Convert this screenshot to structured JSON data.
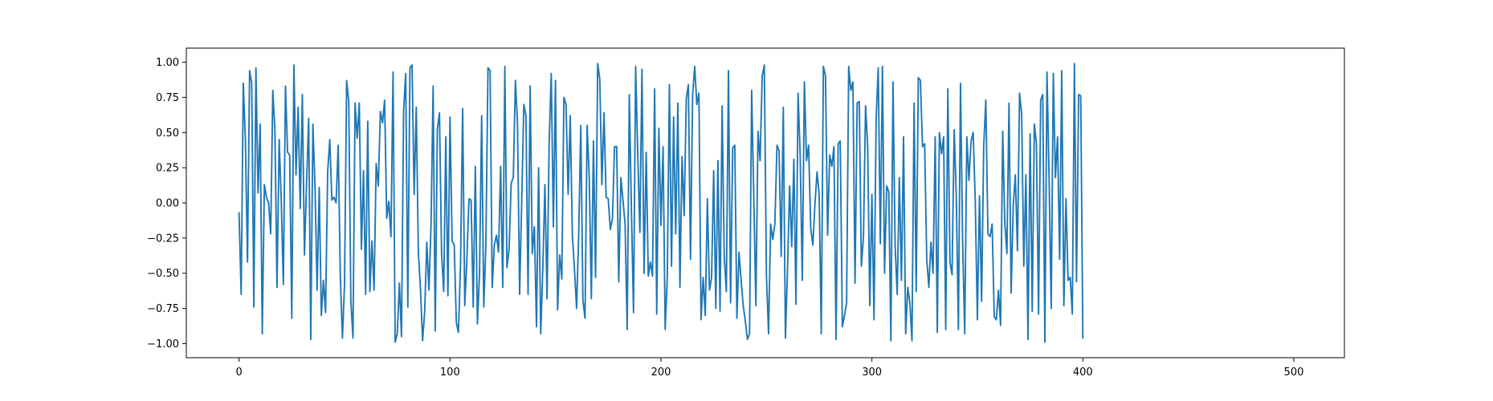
{
  "chart_data": {
    "type": "line",
    "title": "",
    "xlabel": "",
    "ylabel": "",
    "xlim": [
      -25,
      524
    ],
    "ylim": [
      -1.1,
      1.1
    ],
    "x_ticks": [
      0,
      100,
      200,
      300,
      400,
      500
    ],
    "x_tick_labels": [
      "0",
      "100",
      "200",
      "300",
      "400",
      "500"
    ],
    "y_ticks": [
      1.0,
      0.75,
      0.5,
      0.25,
      0.0,
      -0.25,
      -0.5,
      -0.75,
      -1.0
    ],
    "y_tick_labels": [
      "1.00",
      "0.75",
      "0.50",
      "0.25",
      "0.00",
      "−0.25",
      "−0.50",
      "−0.75",
      "−1.00"
    ],
    "grid": false,
    "series": [
      {
        "color": "#1f77b4",
        "x_start": 0,
        "x_step": 1,
        "values": [
          -0.07,
          -0.65,
          0.85,
          0.45,
          -0.42,
          0.94,
          0.85,
          -0.74,
          0.96,
          0.07,
          0.56,
          -0.93,
          0.13,
          0.04,
          0.0,
          -0.22,
          0.8,
          0.51,
          -0.6,
          0.45,
          0.02,
          -0.58,
          0.83,
          0.36,
          0.34,
          -0.82,
          0.98,
          0.2,
          0.68,
          -0.04,
          0.77,
          -0.37,
          0.14,
          0.6,
          -0.97,
          0.56,
          0.12,
          -0.62,
          0.11,
          -0.8,
          -0.55,
          -0.78,
          0.22,
          0.45,
          0.02,
          0.04,
          0.0,
          0.41,
          -0.52,
          -0.96,
          -0.58,
          0.87,
          0.72,
          -0.7,
          -0.96,
          0.71,
          0.46,
          0.71,
          -0.33,
          0.23,
          -0.65,
          0.58,
          -0.63,
          -0.27,
          -0.62,
          0.28,
          0.12,
          0.65,
          0.57,
          0.73,
          -0.11,
          0.01,
          -0.24,
          0.93,
          -0.99,
          -0.93,
          -0.57,
          -0.95,
          0.65,
          0.92,
          -0.74,
          0.96,
          0.98,
          0.06,
          0.68,
          -0.35,
          -0.61,
          -0.98,
          -0.77,
          -0.28,
          -0.62,
          -0.16,
          0.83,
          -0.91,
          0.52,
          0.64,
          -0.36,
          -0.63,
          0.47,
          -0.66,
          0.61,
          -0.27,
          -0.3,
          -0.85,
          -0.92,
          -0.43,
          0.67,
          -0.73,
          -0.4,
          0.03,
          0.02,
          -0.74,
          0.26,
          -0.86,
          -0.5,
          0.62,
          -0.74,
          -0.3,
          0.96,
          0.94,
          -0.6,
          -0.3,
          -0.23,
          -0.35,
          0.26,
          -0.6,
          0.97,
          -0.46,
          -0.33,
          0.14,
          0.18,
          0.87,
          0.56,
          -0.65,
          0.02,
          0.7,
          0.62,
          -0.65,
          0.83,
          -0.36,
          -0.17,
          -0.88,
          0.25,
          -0.93,
          -0.46,
          0.13,
          -0.68,
          0.43,
          0.92,
          -0.17,
          0.87,
          -0.76,
          -0.37,
          -0.54,
          0.75,
          0.7,
          0.06,
          0.62,
          -0.23,
          -0.47,
          -0.75,
          -0.23,
          0.55,
          -0.69,
          -0.82,
          0.55,
          0.18,
          -0.68,
          0.44,
          -0.53,
          0.99,
          0.88,
          0.13,
          0.64,
          0.04,
          0.03,
          -0.19,
          -0.11,
          0.4,
          0.4,
          -0.56,
          0.18,
          0.02,
          -0.15,
          -0.9,
          0.77,
          -0.05,
          -0.78,
          0.97,
          0.35,
          -0.21,
          0.95,
          -0.5,
          0.36,
          -0.52,
          -0.42,
          -0.52,
          0.81,
          -0.79,
          0.53,
          -0.16,
          0.4,
          -0.9,
          -0.53,
          0.84,
          -0.45,
          0.61,
          -0.22,
          0.71,
          -0.6,
          0.33,
          -0.09,
          0.74,
          0.84,
          -0.4,
          0.76,
          0.97,
          0.7,
          0.78,
          -0.83,
          -0.53,
          -0.8,
          0.03,
          -0.62,
          -0.53,
          0.23,
          -0.75,
          0.3,
          -0.77,
          0.69,
          -0.38,
          -0.63,
          0.94,
          -0.71,
          0.39,
          0.41,
          -0.82,
          -0.35,
          -0.55,
          -0.73,
          -0.84,
          -0.97,
          -0.93,
          0.8,
          0.05,
          -0.73,
          0.51,
          0.3,
          0.9,
          0.98,
          -0.51,
          -0.93,
          -0.15,
          -0.26,
          -0.15,
          0.41,
          0.37,
          -0.38,
          0.68,
          -0.96,
          -0.47,
          0.12,
          -0.31,
          0.31,
          -0.72,
          0.78,
          0.34,
          -0.55,
          0.86,
          0.3,
          0.41,
          -0.18,
          -0.3,
          -0.01,
          0.22,
          0.06,
          -0.93,
          0.97,
          0.9,
          -0.23,
          0.34,
          0.26,
          0.4,
          -0.97,
          0.42,
          0.44,
          -0.88,
          -0.8,
          -0.71,
          0.97,
          0.8,
          0.86,
          -0.57,
          0.71,
          0.72,
          -0.45,
          -0.24,
          0.69,
          0.4,
          -0.73,
          0.06,
          -0.83,
          0.6,
          0.96,
          -0.29,
          0.97,
          -0.5,
          0.12,
          0.08,
          -0.98,
          0.86,
          -0.3,
          -0.65,
          0.18,
          -0.55,
          0.47,
          -0.93,
          -0.6,
          -0.71,
          -0.98,
          0.71,
          -0.63,
          0.89,
          0.87,
          0.4,
          0.42,
          -0.4,
          -0.6,
          -0.28,
          -0.5,
          0.47,
          -0.92,
          0.5,
          0.35,
          0.47,
          -0.9,
          0.81,
          -0.42,
          -0.51,
          0.52,
          0.05,
          -0.9,
          0.85,
          -0.27,
          -0.93,
          0.47,
          0.16,
          0.44,
          0.5,
          0.01,
          -0.83,
          0.05,
          -0.7,
          0.4,
          0.73,
          -0.22,
          -0.24,
          -0.15,
          -0.81,
          -0.83,
          -0.62,
          -0.87,
          0.51,
          -0.14,
          -0.36,
          0.71,
          -0.64,
          -0.02,
          0.2,
          -0.34,
          0.78,
          0.63,
          -0.45,
          0.2,
          -0.97,
          0.49,
          -0.77,
          0.56,
          0.42,
          -0.79,
          0.73,
          0.77,
          -0.99,
          0.93,
          0.18,
          -0.75,
          0.92,
          0.18,
          0.47,
          -0.4,
          0.94,
          -0.73,
          0.03,
          -0.55,
          -0.53,
          -0.79,
          0.99,
          -0.56,
          0.77,
          0.76,
          -0.96
        ]
      }
    ]
  }
}
